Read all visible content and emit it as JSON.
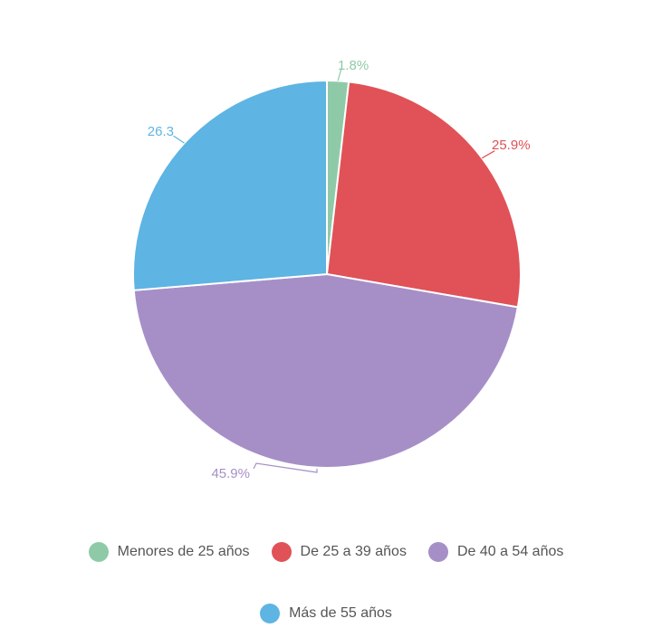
{
  "chart_data": {
    "type": "pie",
    "categories": [
      "Menores de 25 años",
      "De 25 a 39 años",
      "De 40 a 54 años",
      "Más de 55 años"
    ],
    "values": [
      1.8,
      25.9,
      45.9,
      26.3
    ],
    "data_labels": [
      "1.8%",
      "25.9%",
      "45.9%",
      "26.3"
    ],
    "colors": [
      "#8fcaa8",
      "#e05257",
      "#a68fc7",
      "#5eb4e3"
    ],
    "legend_position": "bottom",
    "start_angle": "12 o'clock",
    "direction": "clockwise"
  }
}
